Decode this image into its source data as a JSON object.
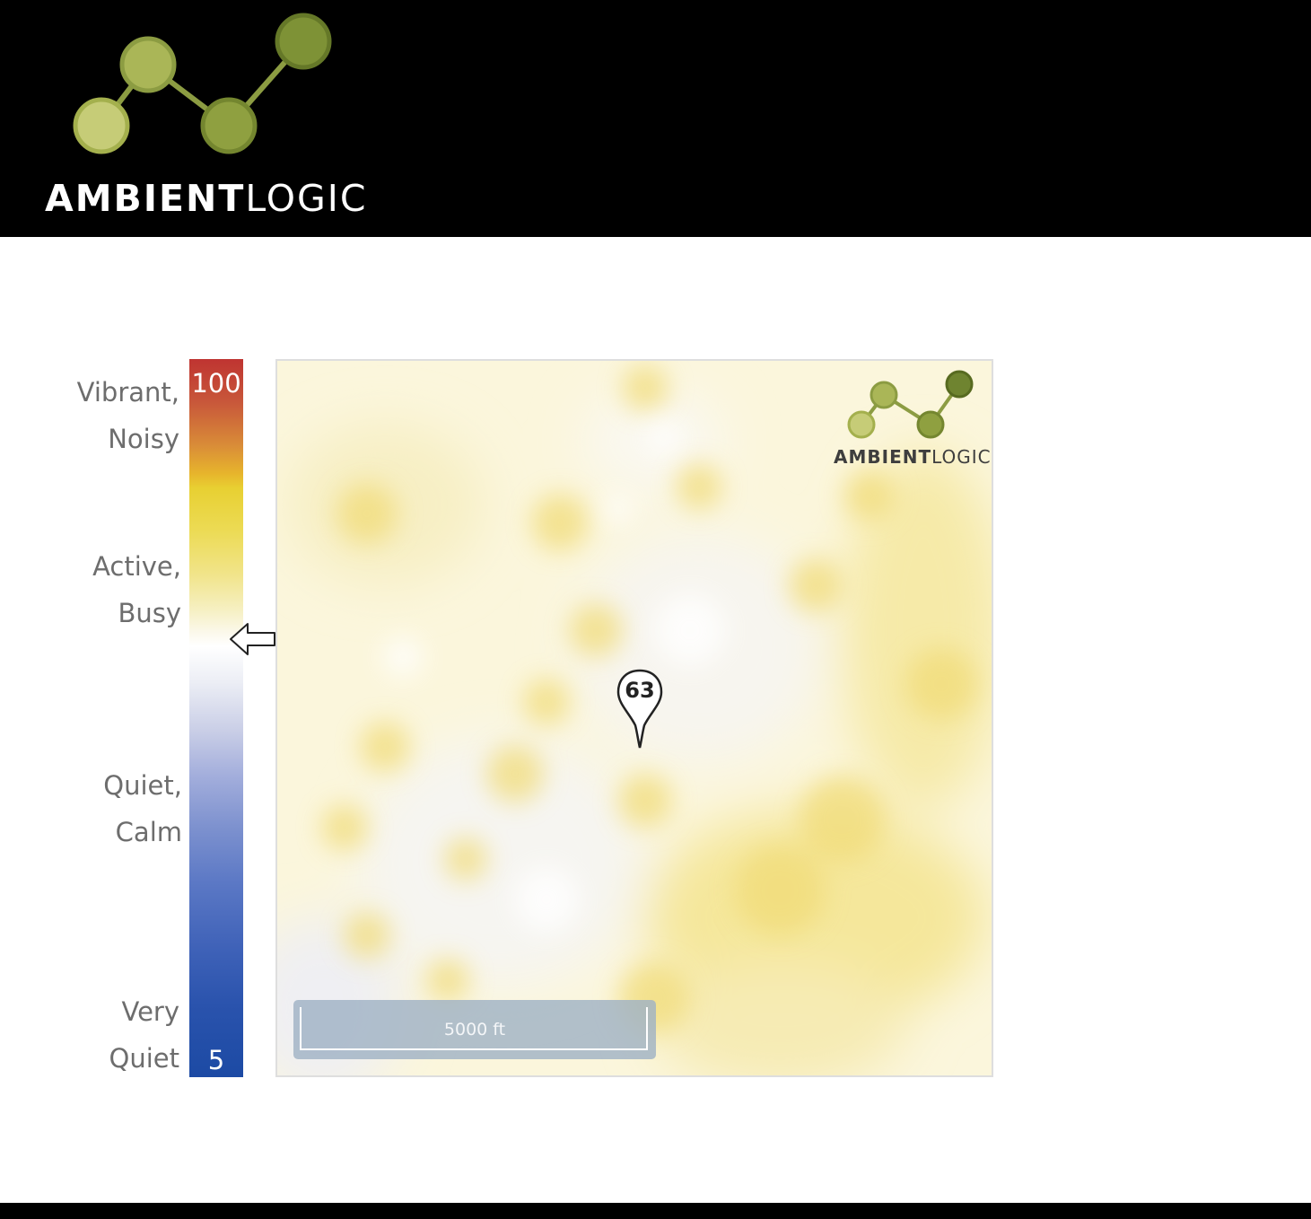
{
  "header": {
    "logo_text_bold": "AMBIENT",
    "logo_text_light": "LOGIC",
    "logo_icon": "connected-dots-logo-icon"
  },
  "legend": {
    "labels": [
      {
        "line1": "Vibrant,",
        "line2": "Noisy"
      },
      {
        "line1": "Active,",
        "line2": "Busy"
      },
      {
        "line1": "Quiet,",
        "line2": "Calm"
      },
      {
        "line1": "Very",
        "line2": "Quiet"
      }
    ],
    "scale_max": "100",
    "scale_min": "5",
    "current_level": 63,
    "indicator_icon": "arrow-left-icon",
    "colors": {
      "high": "#bf3431",
      "busy": "#e8d032",
      "neutral": "#ffffff",
      "low": "#1c4aa4"
    }
  },
  "map": {
    "marker_value": "63",
    "marker_icon": "map-pin-icon",
    "scale_label": "5000 ft",
    "logo_text_bold": "AMBIENT",
    "logo_text_light": "LOGIC"
  }
}
